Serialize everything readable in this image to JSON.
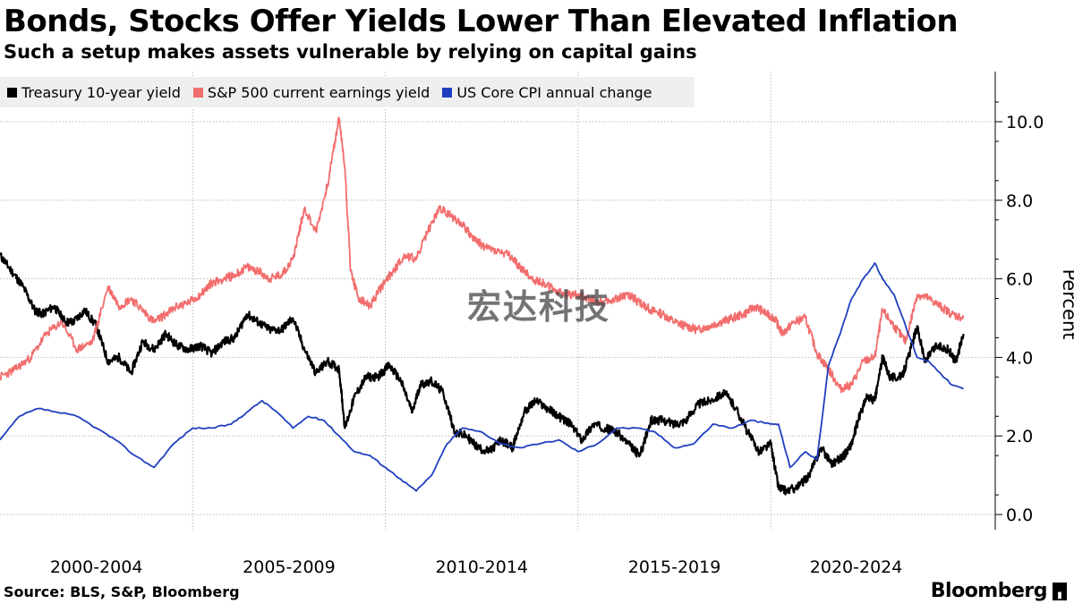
{
  "header": {
    "title": "Bonds, Stocks Offer Yields Lower Than Elevated Inflation",
    "subtitle": "Such a setup makes assets vulnerable by relying on capital gains"
  },
  "footer": {
    "source": "Source: BLS, S&P, Bloomberg",
    "brand": "Bloomberg"
  },
  "watermark": "宏达科技",
  "colors": {
    "treasury": "#000000",
    "earnings": "#f26d6d",
    "cpi": "#1f3fbf",
    "grid": "#b9b9b9",
    "legend_bg": "#efefef"
  },
  "chart_data": {
    "type": "line",
    "title": "Bonds, Stocks Offer Yields Lower Than Elevated Inflation",
    "subtitle": "Such a setup makes assets vulnerable by relying on capital gains",
    "ylabel": "Percent",
    "ylim": [
      0,
      11
    ],
    "yticks": [
      0.0,
      2.0,
      4.0,
      6.0,
      8.0,
      10.0
    ],
    "ytick_labels": [
      "0.0",
      "2.0",
      "4.0",
      "6.0",
      "8.0",
      "10.0"
    ],
    "xlim": [
      2000.0,
      2025.5
    ],
    "xtick_groups": [
      "2000-2004",
      "2005-2009",
      "2010-2014",
      "2015-2019",
      "2020-2024"
    ],
    "grid": true,
    "legend_placement": "top-left",
    "series": [
      {
        "name": "Treasury 10-year yield",
        "color": "#000000",
        "x": [
          2000.0,
          2000.3,
          2000.6,
          2000.9,
          2001.1,
          2001.4,
          2001.7,
          2001.9,
          2002.2,
          2002.5,
          2002.8,
          2003.1,
          2003.4,
          2003.7,
          2004.0,
          2004.3,
          2004.6,
          2004.9,
          2005.2,
          2005.5,
          2005.8,
          2006.1,
          2006.4,
          2006.7,
          2007.0,
          2007.3,
          2007.6,
          2007.9,
          2008.2,
          2008.5,
          2008.8,
          2008.95,
          2009.2,
          2009.5,
          2009.8,
          2010.1,
          2010.4,
          2010.7,
          2010.9,
          2011.2,
          2011.5,
          2011.8,
          2012.1,
          2012.4,
          2012.7,
          2013.0,
          2013.3,
          2013.6,
          2013.9,
          2014.2,
          2014.5,
          2014.8,
          2015.1,
          2015.4,
          2015.7,
          2016.0,
          2016.3,
          2016.6,
          2016.9,
          2017.2,
          2017.5,
          2017.8,
          2018.1,
          2018.4,
          2018.8,
          2019.1,
          2019.4,
          2019.7,
          2020.0,
          2020.2,
          2020.4,
          2020.7,
          2021.0,
          2021.3,
          2021.6,
          2021.9,
          2022.1,
          2022.3,
          2022.5,
          2022.7,
          2022.9,
          2023.1,
          2023.4,
          2023.6,
          2023.8,
          2024.0,
          2024.3,
          2024.6,
          2024.8,
          2025.0
        ],
        "values": [
          6.6,
          6.2,
          5.8,
          5.2,
          5.1,
          5.3,
          4.9,
          4.9,
          5.2,
          4.8,
          3.9,
          4.0,
          3.6,
          4.4,
          4.2,
          4.6,
          4.3,
          4.2,
          4.3,
          4.1,
          4.4,
          4.5,
          5.1,
          4.9,
          4.7,
          4.7,
          5.0,
          4.2,
          3.6,
          3.9,
          3.7,
          2.2,
          3.0,
          3.5,
          3.5,
          3.8,
          3.4,
          2.6,
          3.3,
          3.4,
          3.1,
          2.1,
          2.0,
          1.7,
          1.6,
          1.9,
          1.7,
          2.6,
          2.9,
          2.7,
          2.5,
          2.3,
          1.9,
          2.3,
          2.2,
          2.1,
          1.8,
          1.5,
          2.4,
          2.4,
          2.3,
          2.4,
          2.8,
          2.9,
          3.1,
          2.7,
          2.1,
          1.6,
          1.8,
          0.7,
          0.6,
          0.7,
          1.0,
          1.7,
          1.3,
          1.5,
          1.8,
          2.5,
          3.0,
          2.9,
          4.0,
          3.5,
          3.5,
          4.1,
          4.8,
          3.9,
          4.3,
          4.2,
          3.9,
          4.6
        ]
      },
      {
        "name": "S&P 500 current earnings yield",
        "color": "#f26d6d",
        "x": [
          2000.0,
          2000.4,
          2000.8,
          2001.2,
          2001.6,
          2002.0,
          2002.4,
          2002.8,
          2003.1,
          2003.4,
          2003.7,
          2004.0,
          2004.3,
          2004.6,
          2004.9,
          2005.2,
          2005.5,
          2005.8,
          2006.1,
          2006.4,
          2006.7,
          2007.0,
          2007.3,
          2007.6,
          2007.9,
          2008.2,
          2008.5,
          2008.8,
          2008.95,
          2009.1,
          2009.3,
          2009.6,
          2009.9,
          2010.2,
          2010.5,
          2010.8,
          2011.1,
          2011.4,
          2011.7,
          2012.0,
          2012.3,
          2012.6,
          2012.9,
          2013.2,
          2013.5,
          2013.8,
          2014.1,
          2014.4,
          2014.7,
          2015.0,
          2015.3,
          2015.6,
          2016.0,
          2016.3,
          2016.6,
          2016.9,
          2017.2,
          2017.5,
          2017.8,
          2018.1,
          2018.4,
          2018.7,
          2019.0,
          2019.3,
          2019.6,
          2019.9,
          2020.1,
          2020.3,
          2020.6,
          2020.9,
          2021.2,
          2021.5,
          2021.8,
          2022.1,
          2022.4,
          2022.7,
          2022.9,
          2023.2,
          2023.5,
          2023.8,
          2024.1,
          2024.4,
          2024.7,
          2025.0
        ],
        "values": [
          3.5,
          3.7,
          4.0,
          4.6,
          4.9,
          4.2,
          4.4,
          5.8,
          5.3,
          5.5,
          5.2,
          4.9,
          5.1,
          5.3,
          5.4,
          5.6,
          5.9,
          6.0,
          6.1,
          6.3,
          6.2,
          6.0,
          6.1,
          6.5,
          7.8,
          7.2,
          8.4,
          10.1,
          8.8,
          6.2,
          5.5,
          5.3,
          5.8,
          6.2,
          6.6,
          6.5,
          7.2,
          7.8,
          7.6,
          7.4,
          7.0,
          6.8,
          6.7,
          6.6,
          6.3,
          6.0,
          5.9,
          5.7,
          5.6,
          5.6,
          5.5,
          5.4,
          5.5,
          5.6,
          5.4,
          5.2,
          5.1,
          4.9,
          4.8,
          4.7,
          4.8,
          4.9,
          5.0,
          5.1,
          5.3,
          5.1,
          5.0,
          4.6,
          4.9,
          5.0,
          4.1,
          3.7,
          3.2,
          3.3,
          3.9,
          4.0,
          5.2,
          4.8,
          4.4,
          5.6,
          5.5,
          5.3,
          5.1,
          5.0
        ]
      },
      {
        "name": "US Core CPI annual change",
        "color": "#1f3fbf",
        "x": [
          2000.0,
          2000.5,
          2001.0,
          2001.5,
          2002.0,
          2002.5,
          2003.0,
          2003.5,
          2004.0,
          2004.5,
          2005.0,
          2005.5,
          2006.0,
          2006.4,
          2006.8,
          2007.2,
          2007.6,
          2008.0,
          2008.4,
          2008.8,
          2009.2,
          2009.6,
          2010.0,
          2010.4,
          2010.8,
          2011.2,
          2011.6,
          2012.0,
          2012.5,
          2013.0,
          2013.5,
          2014.0,
          2014.5,
          2015.0,
          2015.5,
          2016.0,
          2016.5,
          2017.0,
          2017.5,
          2018.0,
          2018.5,
          2019.0,
          2019.5,
          2020.0,
          2020.2,
          2020.5,
          2020.9,
          2021.2,
          2021.5,
          2021.8,
          2022.1,
          2022.4,
          2022.7,
          2022.9,
          2023.2,
          2023.5,
          2023.8,
          2024.1,
          2024.4,
          2024.7,
          2025.0
        ],
        "values": [
          1.9,
          2.5,
          2.7,
          2.6,
          2.5,
          2.2,
          1.9,
          1.5,
          1.2,
          1.8,
          2.2,
          2.2,
          2.3,
          2.6,
          2.9,
          2.6,
          2.2,
          2.5,
          2.4,
          2.0,
          1.6,
          1.5,
          1.2,
          0.9,
          0.6,
          1.0,
          1.8,
          2.2,
          2.1,
          1.8,
          1.7,
          1.8,
          1.9,
          1.6,
          1.8,
          2.2,
          2.2,
          2.1,
          1.7,
          1.8,
          2.3,
          2.2,
          2.4,
          2.3,
          2.3,
          1.2,
          1.6,
          1.4,
          3.8,
          4.6,
          5.5,
          6.0,
          6.4,
          6.0,
          5.6,
          4.8,
          4.0,
          3.9,
          3.6,
          3.3,
          3.2
        ]
      }
    ]
  }
}
